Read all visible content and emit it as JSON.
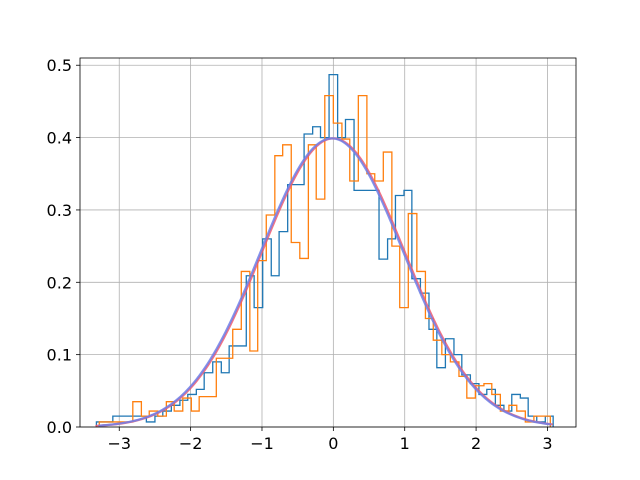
{
  "chart_data": {
    "type": "line",
    "title": "",
    "xlabel": "",
    "ylabel": "",
    "xlim": [
      -3.55,
      3.4
    ],
    "ylim": [
      0,
      0.51
    ],
    "grid": true,
    "xticks": [
      -3,
      -2,
      -1,
      0,
      1,
      2,
      3
    ],
    "xtick_labels": [
      "−3",
      "−2",
      "−1",
      "0",
      "1",
      "2",
      "3"
    ],
    "yticks": [
      0.0,
      0.1,
      0.2,
      0.3,
      0.4,
      0.5
    ],
    "ytick_labels": [
      "0.0",
      "0.1",
      "0.2",
      "0.3",
      "0.4",
      "0.5"
    ],
    "series": [
      {
        "kind": "step-histogram",
        "color": "#1f77b4",
        "bin_edges": [
          -3.32,
          -3.2,
          -3.09,
          -2.97,
          -2.85,
          -2.74,
          -2.62,
          -2.5,
          -2.39,
          -2.27,
          -2.15,
          -2.04,
          -1.92,
          -1.81,
          -1.69,
          -1.57,
          -1.46,
          -1.34,
          -1.22,
          -1.11,
          -0.99,
          -0.87,
          -0.76,
          -0.64,
          -0.53,
          -0.41,
          -0.29,
          -0.18,
          -0.06,
          0.06,
          0.17,
          0.29,
          0.41,
          0.52,
          0.64,
          0.76,
          0.87,
          0.99,
          1.1,
          1.22,
          1.34,
          1.45,
          1.57,
          1.69,
          1.8,
          1.92,
          2.04,
          2.15,
          2.27,
          2.39,
          2.5,
          2.62,
          2.73,
          2.85,
          2.97,
          3.08
        ],
        "values": [
          0.007,
          0.007,
          0.015,
          0.015,
          0.015,
          0.015,
          0.007,
          0.015,
          0.022,
          0.03,
          0.037,
          0.045,
          0.052,
          0.075,
          0.09,
          0.075,
          0.112,
          0.112,
          0.209,
          0.165,
          0.26,
          0.209,
          0.27,
          0.335,
          0.335,
          0.405,
          0.415,
          0.4,
          0.487,
          0.4,
          0.425,
          0.327,
          0.327,
          0.327,
          0.232,
          0.26,
          0.32,
          0.327,
          0.205,
          0.185,
          0.135,
          0.082,
          0.122,
          0.1,
          0.072,
          0.06,
          0.045,
          0.052,
          0.03,
          0.022,
          0.045,
          0.04,
          0.015,
          0.007,
          0.015
        ]
      },
      {
        "kind": "step-histogram",
        "color": "#ff7f0e",
        "bin_edges": [
          -3.28,
          -3.16,
          -3.05,
          -2.93,
          -2.81,
          -2.69,
          -2.58,
          -2.46,
          -2.34,
          -2.23,
          -2.11,
          -1.99,
          -1.88,
          -1.76,
          -1.64,
          -1.52,
          -1.41,
          -1.29,
          -1.17,
          -1.06,
          -0.94,
          -0.82,
          -0.71,
          -0.59,
          -0.47,
          -0.35,
          -0.24,
          -0.12,
          0.0,
          0.12,
          0.23,
          0.35,
          0.47,
          0.58,
          0.7,
          0.82,
          0.93,
          1.05,
          1.17,
          1.29,
          1.4,
          1.52,
          1.64,
          1.76,
          1.87,
          1.99,
          2.11,
          2.22,
          2.34,
          2.46,
          2.57,
          2.69,
          2.81,
          2.92,
          3.04
        ],
        "values": [
          0.007,
          0.007,
          0.007,
          0.007,
          0.035,
          0.015,
          0.022,
          0.015,
          0.035,
          0.022,
          0.04,
          0.022,
          0.042,
          0.042,
          0.095,
          0.095,
          0.135,
          0.215,
          0.105,
          0.23,
          0.293,
          0.375,
          0.39,
          0.255,
          0.233,
          0.39,
          0.315,
          0.458,
          0.42,
          0.398,
          0.34,
          0.458,
          0.35,
          0.34,
          0.38,
          0.25,
          0.165,
          0.295,
          0.215,
          0.15,
          0.12,
          0.1,
          0.09,
          0.07,
          0.04,
          0.057,
          0.06,
          0.045,
          0.022,
          0.03,
          0.022,
          0.007,
          0.015,
          0.015
        ]
      },
      {
        "kind": "pdf-curve",
        "color": "#f05a6e",
        "mean": 0,
        "sd": 1,
        "x_range": [
          -3.32,
          3.06
        ]
      },
      {
        "kind": "pdf-curve",
        "color": "#6f7fe8",
        "mean": -0.02,
        "sd": 1.0,
        "x_range": [
          -3.28,
          3.04
        ]
      }
    ]
  }
}
